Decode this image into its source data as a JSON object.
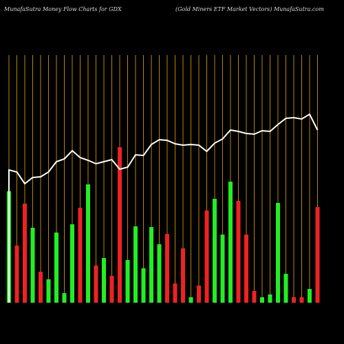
{
  "chart_data": {
    "type": "bar",
    "title": "MunafaSutra  Money Flow  Charts for GDX",
    "subtitle": "(Gold Miners ETF Market Vectors) MunafaSutra.com",
    "ylim": [
      0,
      360
    ],
    "values": [
      162,
      83,
      144,
      109,
      45,
      34,
      102,
      14,
      114,
      138,
      172,
      54,
      65,
      39,
      226,
      62,
      111,
      50,
      110,
      85,
      100,
      28,
      79,
      8,
      25,
      134,
      151,
      99,
      176,
      148,
      99,
      17,
      8,
      12,
      145,
      42,
      8,
      8,
      20,
      139
    ],
    "colors": [
      "#22ee22",
      "#ee2222",
      "#ee2222",
      "#22ee22",
      "#ee2222",
      "#22ee22",
      "#22ee22",
      "#22ee22",
      "#22ee22",
      "#ee2222",
      "#22ee22",
      "#ee2222",
      "#22ee22",
      "#ee2222",
      "#ee2222",
      "#22ee22",
      "#22ee22",
      "#22ee22",
      "#22ee22",
      "#22ee22",
      "#ee2222",
      "#ee2222",
      "#ee2222",
      "#22ee22",
      "#ee2222",
      "#ee2222",
      "#22ee22",
      "#22ee22",
      "#22ee22",
      "#ee2222",
      "#ee2222",
      "#ee2222",
      "#22ee22",
      "#22ee22",
      "#22ee22",
      "#22ee22",
      "#ee2222",
      "#ee2222",
      "#22ee22",
      "#ee2222"
    ],
    "line_values": [
      193,
      190,
      173,
      182,
      183,
      190,
      205,
      209,
      221,
      211,
      207,
      202,
      205,
      208,
      194,
      197,
      215,
      214,
      230,
      237,
      236,
      231,
      229,
      230,
      229,
      220,
      232,
      238,
      251,
      249,
      246,
      245,
      250,
      249,
      259,
      268,
      269,
      267,
      274,
      251
    ],
    "line_color": "#ffffff",
    "grid_color": "#b8860b"
  }
}
